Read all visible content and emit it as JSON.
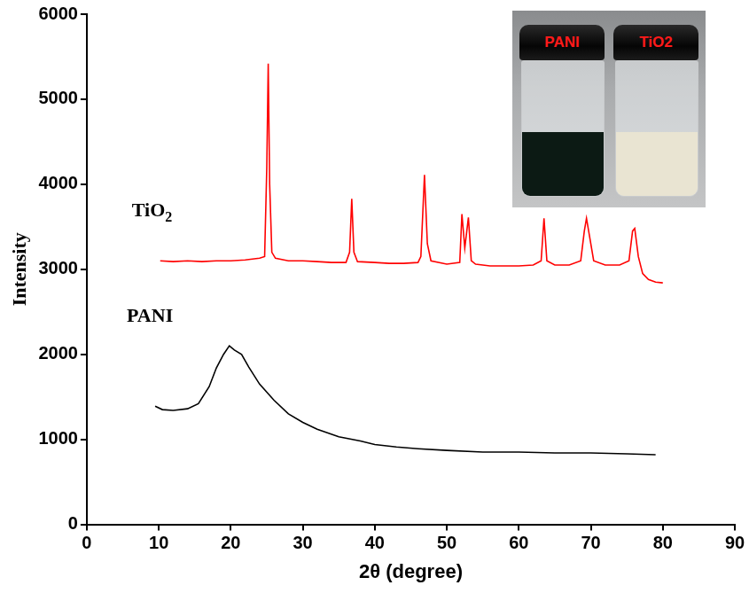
{
  "chart_data": {
    "type": "line",
    "x_label": "2θ (degree)",
    "y_label": "Intensity",
    "xlim": [
      0,
      90
    ],
    "xticks": [
      0,
      10,
      20,
      30,
      40,
      50,
      60,
      70,
      80,
      90
    ],
    "ylim": [
      0,
      6000
    ],
    "yticks": [
      0,
      1000,
      2000,
      3000,
      4000,
      5000,
      6000
    ],
    "grid": false,
    "annotations": [
      "PANI",
      "TiO2"
    ],
    "series": [
      {
        "name": "TiO2",
        "color": "#ff0000",
        "x": [
          10.2,
          12,
          14,
          16,
          18,
          20,
          22,
          24,
          24.7,
          25.0,
          25.2,
          25.4,
          25.7,
          26.2,
          28,
          30,
          32,
          34,
          36,
          36.5,
          36.8,
          37.1,
          37.6,
          40,
          42,
          44,
          46,
          46.4,
          46.9,
          47.3,
          47.8,
          50,
          51.8,
          52.1,
          52.5,
          53.0,
          53.4,
          54,
          56,
          58,
          60,
          62,
          63.1,
          63.5,
          63.9,
          65,
          67,
          68.6,
          69.1,
          69.4,
          69.8,
          70.4,
          72,
          74,
          75.3,
          75.8,
          76.1,
          76.6,
          77.2,
          78,
          79,
          80
        ],
        "values": [
          3100,
          3090,
          3100,
          3090,
          3100,
          3100,
          3110,
          3130,
          3150,
          4200,
          5420,
          4000,
          3200,
          3130,
          3100,
          3100,
          3090,
          3080,
          3080,
          3200,
          3830,
          3200,
          3090,
          3080,
          3070,
          3070,
          3080,
          3150,
          4110,
          3300,
          3100,
          3060,
          3080,
          3650,
          3250,
          3610,
          3100,
          3060,
          3040,
          3040,
          3040,
          3050,
          3100,
          3600,
          3100,
          3050,
          3050,
          3100,
          3450,
          3600,
          3400,
          3100,
          3050,
          3050,
          3100,
          3450,
          3480,
          3150,
          2950,
          2880,
          2850,
          2840
        ]
      },
      {
        "name": "PANI",
        "color": "#000000",
        "x": [
          9.5,
          10.5,
          12,
          14,
          15.5,
          17,
          18,
          19,
          19.8,
          20.5,
          21.5,
          22.5,
          24,
          26,
          28,
          30,
          32,
          35,
          38,
          40,
          43,
          46,
          50,
          55,
          60,
          65,
          70,
          75,
          79
        ],
        "values": [
          1390,
          1350,
          1340,
          1360,
          1420,
          1620,
          1840,
          2000,
          2100,
          2050,
          2000,
          1850,
          1650,
          1460,
          1300,
          1200,
          1120,
          1030,
          980,
          940,
          910,
          890,
          870,
          850,
          850,
          840,
          840,
          830,
          820
        ]
      }
    ]
  }
}
